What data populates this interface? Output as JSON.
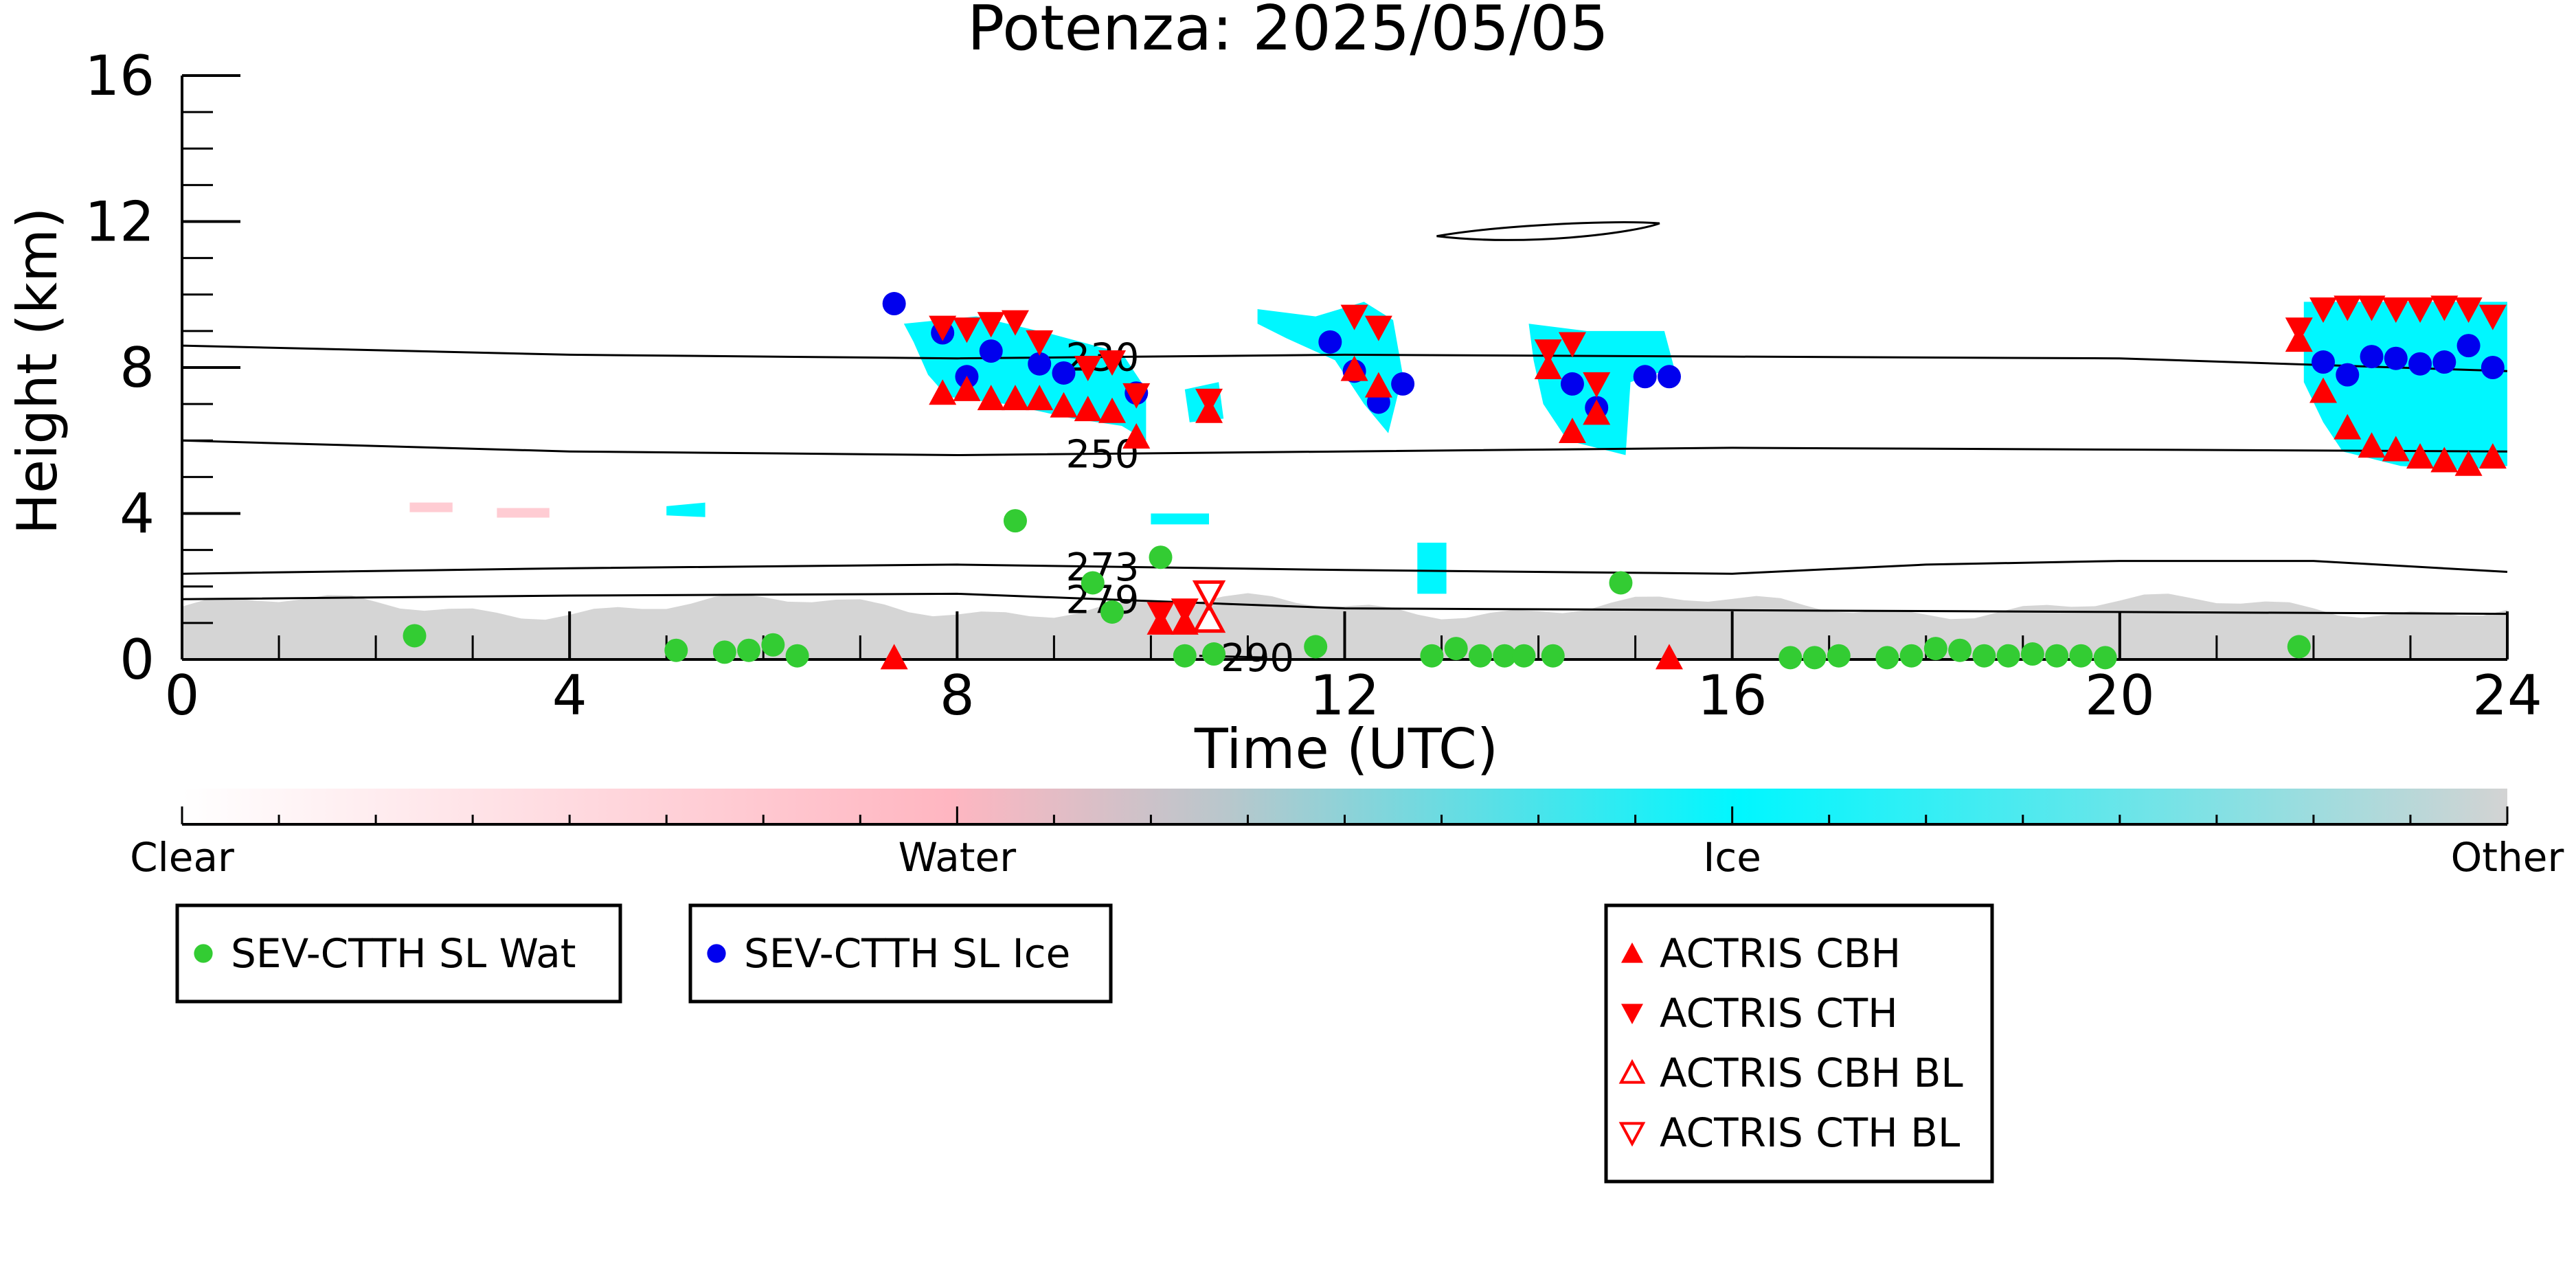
{
  "chart_data": {
    "type": "scatter",
    "title": "Potenza: 2025/05/05",
    "xlabel": "Time (UTC)",
    "ylabel": "Height (km)",
    "xlim": [
      0,
      24
    ],
    "ylim": [
      0,
      16
    ],
    "x_ticks": [
      0,
      4,
      8,
      12,
      16,
      20,
      24
    ],
    "y_ticks": [
      0,
      4,
      8,
      12,
      16
    ],
    "colorbar": {
      "labels": [
        "Clear",
        "Water",
        "Ice",
        "Other"
      ],
      "colors": [
        "#ffffff",
        "#ffb6c1",
        "#00f7ff",
        "#d3d3d3"
      ]
    },
    "isotherms": [
      {
        "label": "230",
        "label_x": 9.5,
        "x": [
          0,
          4,
          8,
          12,
          16,
          20,
          24
        ],
        "y": [
          8.6,
          8.35,
          8.25,
          8.35,
          8.3,
          8.25,
          7.9
        ]
      },
      {
        "label": "250",
        "label_x": 9.5,
        "x": [
          0,
          4,
          8,
          12,
          16,
          20,
          24
        ],
        "y": [
          6.0,
          5.7,
          5.6,
          5.7,
          5.8,
          5.75,
          5.7
        ]
      },
      {
        "label": "273",
        "label_x": 9.5,
        "x": [
          0,
          4,
          8,
          12,
          16,
          18,
          20,
          22,
          24
        ],
        "y": [
          2.35,
          2.5,
          2.6,
          2.45,
          2.35,
          2.6,
          2.7,
          2.7,
          2.4
        ]
      },
      {
        "label": "279",
        "label_x": 9.5,
        "x": [
          0,
          4,
          8,
          10,
          12,
          16,
          20,
          24
        ],
        "y": [
          1.65,
          1.75,
          1.8,
          1.6,
          1.4,
          1.35,
          1.3,
          1.25
        ]
      },
      {
        "label": "290",
        "label_x": 11.1,
        "x": [
          10.5,
          11.2
        ],
        "y": [
          0.1,
          0.05
        ]
      }
    ],
    "series": [
      {
        "name": "SEV-CTTH SL Wat",
        "color": "#33cc33",
        "marker": "circle",
        "points": [
          [
            2.4,
            0.65
          ],
          [
            5.1,
            0.25
          ],
          [
            5.6,
            0.2
          ],
          [
            5.85,
            0.25
          ],
          [
            6.1,
            0.4
          ],
          [
            6.35,
            0.1
          ],
          [
            8.6,
            3.8
          ],
          [
            9.4,
            2.1
          ],
          [
            9.6,
            1.3
          ],
          [
            10.1,
            2.8
          ],
          [
            10.35,
            0.1
          ],
          [
            10.65,
            0.15
          ],
          [
            11.7,
            0.35
          ],
          [
            12.9,
            0.1
          ],
          [
            13.15,
            0.3
          ],
          [
            13.4,
            0.1
          ],
          [
            13.65,
            0.1
          ],
          [
            13.85,
            0.1
          ],
          [
            14.15,
            0.1
          ],
          [
            14.85,
            2.1
          ],
          [
            16.6,
            0.05
          ],
          [
            16.85,
            0.05
          ],
          [
            17.1,
            0.1
          ],
          [
            17.6,
            0.05
          ],
          [
            17.85,
            0.1
          ],
          [
            18.1,
            0.3
          ],
          [
            18.35,
            0.25
          ],
          [
            18.6,
            0.1
          ],
          [
            18.85,
            0.1
          ],
          [
            19.1,
            0.15
          ],
          [
            19.35,
            0.1
          ],
          [
            19.6,
            0.1
          ],
          [
            19.85,
            0.05
          ],
          [
            21.85,
            0.35
          ]
        ]
      },
      {
        "name": "SEV-CTTH SL Ice",
        "color": "#0000ee",
        "marker": "circle",
        "points": [
          [
            7.35,
            9.75
          ],
          [
            7.85,
            8.95
          ],
          [
            8.1,
            7.75
          ],
          [
            8.35,
            8.45
          ],
          [
            8.85,
            8.1
          ],
          [
            9.1,
            7.85
          ],
          [
            9.85,
            7.3
          ],
          [
            11.85,
            8.7
          ],
          [
            12.1,
            7.9
          ],
          [
            12.35,
            7.05
          ],
          [
            12.6,
            7.55
          ],
          [
            14.35,
            7.55
          ],
          [
            14.6,
            6.9
          ],
          [
            15.1,
            7.75
          ],
          [
            15.35,
            7.75
          ],
          [
            22.1,
            8.15
          ],
          [
            22.35,
            7.8
          ],
          [
            22.6,
            8.3
          ],
          [
            22.85,
            8.25
          ],
          [
            23.1,
            8.1
          ],
          [
            23.35,
            8.15
          ],
          [
            23.6,
            8.6
          ],
          [
            23.85,
            8.0
          ]
        ]
      },
      {
        "name": "ACTRIS CBH",
        "color": "#ff0000",
        "marker": "triangle-up",
        "points": [
          [
            7.35,
            0.05
          ],
          [
            7.85,
            7.3
          ],
          [
            8.1,
            7.4
          ],
          [
            8.35,
            7.15
          ],
          [
            8.6,
            7.15
          ],
          [
            8.85,
            7.15
          ],
          [
            9.1,
            6.95
          ],
          [
            9.35,
            6.85
          ],
          [
            9.6,
            6.8
          ],
          [
            9.85,
            6.1
          ],
          [
            10.1,
            1.0
          ],
          [
            10.35,
            1.0
          ],
          [
            10.6,
            6.8
          ],
          [
            12.1,
            7.95
          ],
          [
            12.35,
            7.5
          ],
          [
            14.1,
            8.0
          ],
          [
            14.35,
            6.25
          ],
          [
            14.6,
            6.75
          ],
          [
            15.35,
            0.05
          ],
          [
            21.85,
            8.75
          ],
          [
            22.1,
            7.35
          ],
          [
            22.35,
            6.35
          ],
          [
            22.6,
            5.85
          ],
          [
            22.85,
            5.75
          ],
          [
            23.1,
            5.55
          ],
          [
            23.35,
            5.45
          ],
          [
            23.6,
            5.35
          ],
          [
            23.85,
            5.55
          ]
        ]
      },
      {
        "name": "ACTRIS CTH",
        "color": "#ff0000",
        "marker": "triangle-down",
        "points": [
          [
            7.85,
            9.1
          ],
          [
            8.1,
            9.05
          ],
          [
            8.35,
            9.2
          ],
          [
            8.6,
            9.25
          ],
          [
            8.85,
            8.7
          ],
          [
            9.35,
            8.0
          ],
          [
            9.6,
            8.15
          ],
          [
            9.85,
            7.25
          ],
          [
            10.1,
            1.25
          ],
          [
            10.35,
            1.35
          ],
          [
            10.6,
            7.1
          ],
          [
            12.1,
            9.4
          ],
          [
            12.35,
            9.1
          ],
          [
            14.1,
            8.45
          ],
          [
            14.35,
            8.65
          ],
          [
            14.6,
            7.55
          ],
          [
            21.85,
            9.05
          ],
          [
            22.1,
            9.6
          ],
          [
            22.35,
            9.65
          ],
          [
            22.6,
            9.65
          ],
          [
            22.85,
            9.6
          ],
          [
            23.1,
            9.6
          ],
          [
            23.35,
            9.65
          ],
          [
            23.6,
            9.6
          ],
          [
            23.85,
            9.4
          ]
        ]
      },
      {
        "name": "ACTRIS CBH BL",
        "color": "#ff0000",
        "marker": "triangle-up-open",
        "points": [
          [
            10.6,
            1.1
          ]
        ]
      },
      {
        "name": "ACTRIS CTH BL",
        "color": "#ff0000",
        "marker": "triangle-down-open",
        "points": [
          [
            10.6,
            1.8
          ]
        ]
      }
    ],
    "legend_groups": [
      [
        "SEV-CTTH SL Wat"
      ],
      [
        "SEV-CTTH SL Ice"
      ],
      [
        "ACTRIS CBH",
        "ACTRIS CTH",
        "ACTRIS CBH BL",
        "ACTRIS CTH BL"
      ]
    ]
  }
}
